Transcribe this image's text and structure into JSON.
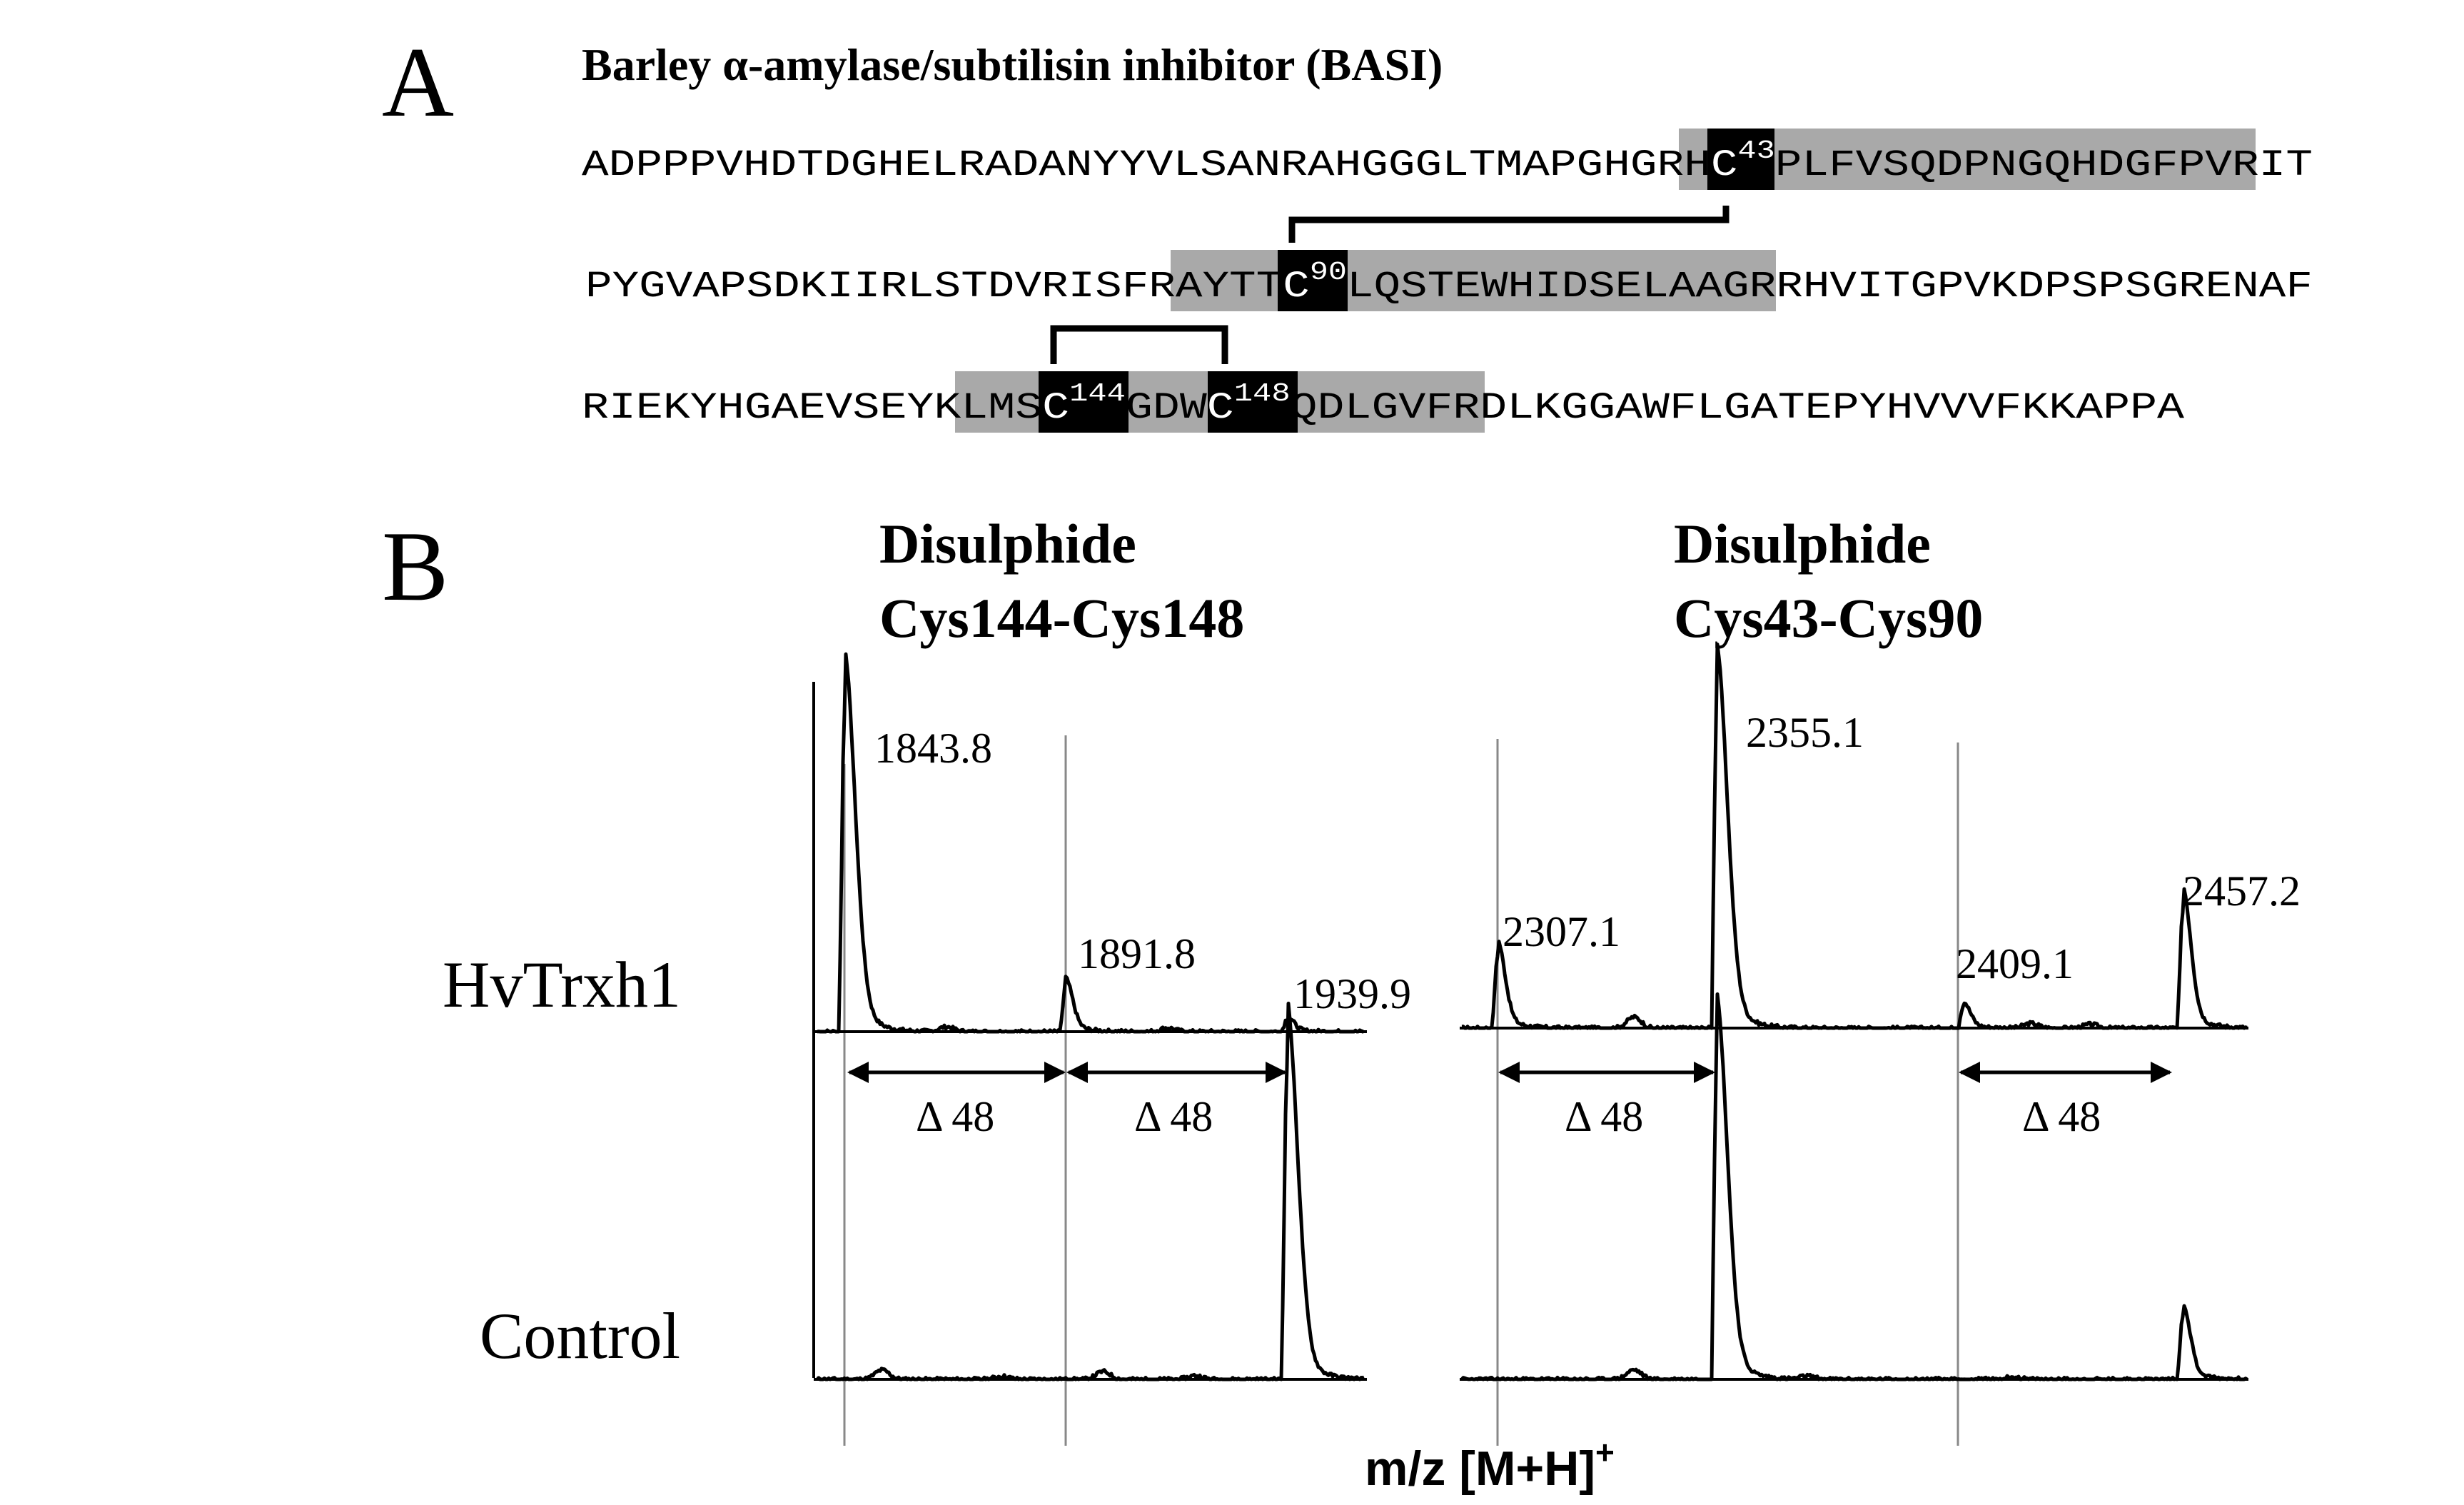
{
  "panel_a": {
    "letter": "A",
    "title": "Barley α-amylase/subtilisin inhibitor (BASI)",
    "line1": {
      "pre": "ADPPPVHDTDGHELRADANYYVLSANRAHGGGLTMAPGHGRH",
      "cys": "C",
      "sup": "43",
      "mid": "PLFVSQDPNGQHDGFPVR",
      "post": "IT"
    },
    "line2": {
      "pre": "PYGVAPSDKIIRLSTDVRISFR",
      "hl": "AYTT",
      "cys": "C",
      "sup": "90",
      "mid": "LQSTEWHIDSELAAGR",
      "post": "RHVITGPVKDPSPSGRENAF"
    },
    "line3": {
      "pre": "RIEKYHGAEVSEYK",
      "hl": "LMS",
      "cys1": "C",
      "sup1": "144",
      "mid": "GDW",
      "cys2": "C",
      "sup2": "148",
      "hl2": "QDLGVFR",
      "post": "DLKGGAWFLGATEPYHVVVFKKAPPA"
    }
  },
  "panel_b": {
    "letter": "B",
    "left_title": [
      "Disulphide",
      "Cys144-Cys148"
    ],
    "right_title": [
      "Disulphide",
      "Cys43-Cys90"
    ],
    "row_labels": {
      "treated": "HvTrxh1",
      "control": "Control"
    },
    "xlabel": "m/z [M+H]",
    "xlabel_sup": "+",
    "delta_labels": [
      "Δ 48",
      "Δ 48",
      "Δ 48",
      "Δ 48"
    ]
  },
  "chart_data": [
    {
      "type": "line",
      "title": "Disulphide Cys144-Cys148",
      "xlabel": "m/z [M+H]+",
      "series": [
        {
          "name": "HvTrxh1",
          "peaks": [
            {
              "mz": 1843.8,
              "rel": 1.0
            },
            {
              "mz": 1891.8,
              "rel": 0.14
            },
            {
              "mz": 1939.9,
              "rel": 0.04
            }
          ]
        },
        {
          "name": "Control",
          "peaks": [
            {
              "mz": 1939.9,
              "rel": 1.0
            }
          ]
        }
      ],
      "peak_labels": [
        "1843.8",
        "1891.8",
        "1939.9"
      ],
      "annotations": [
        "Δ 48",
        "Δ 48"
      ]
    },
    {
      "type": "line",
      "title": "Disulphide Cys43-Cys90",
      "xlabel": "m/z [M+H]+",
      "series": [
        {
          "name": "HvTrxh1",
          "peaks": [
            {
              "mz": 2307.1,
              "rel": 0.23
            },
            {
              "mz": 2355.1,
              "rel": 1.0
            },
            {
              "mz": 2409.1,
              "rel": 0.07
            },
            {
              "mz": 2457.2,
              "rel": 0.37
            }
          ]
        },
        {
          "name": "Control",
          "peaks": [
            {
              "mz": 2355.1,
              "rel": 1.0
            },
            {
              "mz": 2457.2,
              "rel": 0.2
            }
          ]
        }
      ],
      "peak_labels": [
        "2307.1",
        "2355.1",
        "2409.1",
        "2457.2"
      ],
      "annotations": [
        "Δ 48",
        "Δ 48"
      ]
    }
  ]
}
